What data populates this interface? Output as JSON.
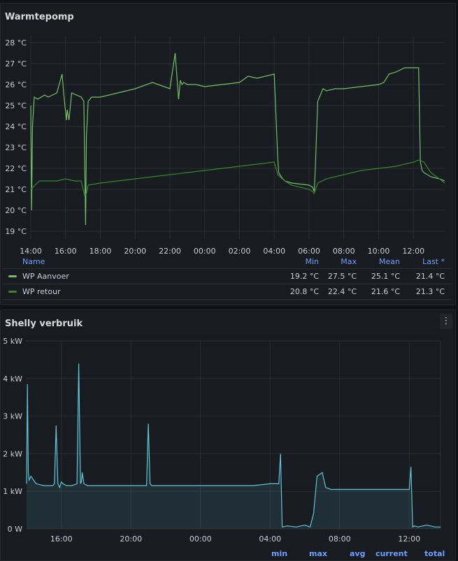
{
  "panel1": {
    "title": "Warmtepomp",
    "y_ticks": [
      "28 °C",
      "27 °C",
      "26 °C",
      "25 °C",
      "24 °C",
      "23 °C",
      "22 °C",
      "21 °C",
      "20 °C",
      "19 °C"
    ],
    "x_ticks": [
      "14:00",
      "16:00",
      "18:00",
      "20:00",
      "22:00",
      "00:00",
      "02:00",
      "04:00",
      "06:00",
      "08:00",
      "10:00",
      "12:00"
    ],
    "legend": {
      "headers": {
        "name": "Name",
        "min": "Min",
        "max": "Max",
        "mean": "Mean",
        "last": "Last *"
      },
      "rows": [
        {
          "name": "WP Aanvoer",
          "min": "19.2 °C",
          "max": "27.5 °C",
          "mean": "25.1 °C",
          "last": "21.4 °C",
          "color": "#73bf69"
        },
        {
          "name": "WP retour",
          "min": "20.8 °C",
          "max": "22.4 °C",
          "mean": "21.6 °C",
          "last": "21.3 °C",
          "color": "#37872d"
        }
      ]
    }
  },
  "panel2": {
    "title": "Shelly verbruik",
    "menu_icon": "⋮",
    "y_ticks": [
      "5 kW",
      "4 kW",
      "3 kW",
      "2 kW",
      "1 kW",
      "0 W"
    ],
    "x_ticks": [
      "16:00",
      "20:00",
      "00:00",
      "04:00",
      "08:00",
      "12:00"
    ],
    "legend": [
      "min",
      "max",
      "avg",
      "current",
      "total"
    ],
    "color": "#5ec4d6"
  },
  "chart_data": [
    {
      "type": "line",
      "title": "Warmtepomp",
      "y_unit": "°C",
      "ylim": [
        18.6,
        28.3
      ],
      "x_unit": "hours since 14:00",
      "series": [
        {
          "name": "WP Aanvoer",
          "color": "#73bf69",
          "x": [
            0,
            0.05,
            0.1,
            0.2,
            0.4,
            0.8,
            1.0,
            1.5,
            1.8,
            1.9,
            2.05,
            2.1,
            2.2,
            2.35,
            2.9,
            3.05,
            3.15,
            3.2,
            3.3,
            3.4,
            3.5,
            4,
            5,
            6,
            7,
            8,
            8.3,
            8.5,
            8.6,
            8.7,
            8.8,
            9,
            9.5,
            10,
            11,
            12,
            12.5,
            13,
            13.5,
            14,
            14.2,
            14.25,
            14.4,
            14.6,
            15,
            16,
            16.2,
            16.3,
            16.35,
            16.5,
            16.8,
            17,
            17.5,
            18,
            19,
            20,
            20.3,
            20.6,
            21,
            21.5,
            22,
            22.3,
            22.4,
            22.5,
            22.6,
            23,
            23.5,
            23.8
          ],
          "y": [
            25.0,
            20.0,
            24.0,
            25.4,
            25.3,
            25.5,
            25.4,
            25.6,
            26.5,
            25.5,
            24.3,
            24.8,
            24.3,
            25.6,
            25.4,
            25.2,
            19.3,
            23.5,
            25.2,
            25.3,
            25.4,
            25.4,
            25.6,
            25.8,
            26.1,
            25.8,
            27.5,
            25.3,
            26.2,
            26.0,
            26.1,
            26.0,
            26.0,
            25.9,
            26.0,
            26.1,
            26.4,
            26.3,
            26.4,
            26.5,
            22.5,
            21.8,
            21.6,
            21.4,
            21.3,
            21.2,
            21.1,
            20.9,
            21.8,
            25.2,
            25.8,
            25.7,
            25.8,
            25.8,
            25.9,
            26.0,
            26.1,
            26.5,
            26.6,
            26.8,
            26.8,
            26.8,
            22.3,
            21.9,
            21.8,
            21.6,
            21.5,
            21.4
          ]
        },
        {
          "name": "WP retour",
          "color": "#37872d",
          "x": [
            0,
            0.5,
            1,
            1.5,
            2,
            2.5,
            2.9,
            3.1,
            3.2,
            3.3,
            4,
            5,
            6,
            7,
            8,
            9,
            10,
            11,
            12,
            13,
            14,
            14.2,
            14.6,
            15,
            16,
            16.2,
            16.3,
            16.5,
            17,
            18,
            19,
            20,
            21,
            22,
            22.3,
            22.6,
            23,
            23.5,
            23.8
          ],
          "y": [
            21.0,
            21.4,
            21.4,
            21.4,
            21.5,
            21.4,
            21.4,
            20.7,
            20.8,
            21.2,
            21.3,
            21.4,
            21.5,
            21.6,
            21.7,
            21.8,
            21.9,
            22.0,
            22.1,
            22.2,
            22.3,
            21.7,
            21.4,
            21.2,
            21.0,
            20.9,
            20.8,
            21.3,
            21.5,
            21.7,
            21.9,
            22.0,
            22.1,
            22.3,
            22.4,
            22.3,
            21.8,
            21.5,
            21.3
          ]
        }
      ]
    },
    {
      "type": "area",
      "title": "Shelly verbruik",
      "y_unit": "kW",
      "ylim": [
        0,
        5
      ],
      "x_unit": "hours since 14:00",
      "series": [
        {
          "name": "Shelly",
          "color": "#5ec4d6",
          "x": [
            0,
            0.05,
            0.1,
            0.15,
            0.25,
            0.4,
            0.55,
            1,
            1.2,
            1.5,
            1.6,
            1.7,
            1.8,
            1.9,
            2.0,
            2.1,
            2.3,
            2.6,
            2.9,
            3.0,
            3.1,
            3.15,
            3.2,
            3.3,
            3.5,
            4,
            5,
            5.5,
            6,
            6.9,
            7.0,
            7.1,
            7.2,
            7.5,
            8,
            9,
            10,
            11,
            12,
            13,
            14,
            14.5,
            14.6,
            14.7,
            15,
            15.5,
            16,
            16.3,
            16.5,
            16.7,
            17,
            17.2,
            17.5,
            18,
            19,
            20,
            21,
            22,
            22.1,
            22.2,
            22.3,
            22.5,
            23,
            23.5,
            23.8
          ],
          "y": [
            1.2,
            3.85,
            1.5,
            1.3,
            1.4,
            1.3,
            1.2,
            1.15,
            1.15,
            1.15,
            1.2,
            2.75,
            1.2,
            1.1,
            1.25,
            1.2,
            1.15,
            1.15,
            1.2,
            4.4,
            1.2,
            1.25,
            1.5,
            1.2,
            1.15,
            1.15,
            1.15,
            1.15,
            1.15,
            1.15,
            2.8,
            1.2,
            1.15,
            1.15,
            1.15,
            1.15,
            1.15,
            1.15,
            1.15,
            1.15,
            1.2,
            1.2,
            2.0,
            0.05,
            0.08,
            0.05,
            0.1,
            0.05,
            0.4,
            1.4,
            1.5,
            1.1,
            1.05,
            1.05,
            1.05,
            1.05,
            1.05,
            1.05,
            1.65,
            0.05,
            0.08,
            0.05,
            0.1,
            0.05,
            0.05
          ]
        }
      ]
    }
  ]
}
